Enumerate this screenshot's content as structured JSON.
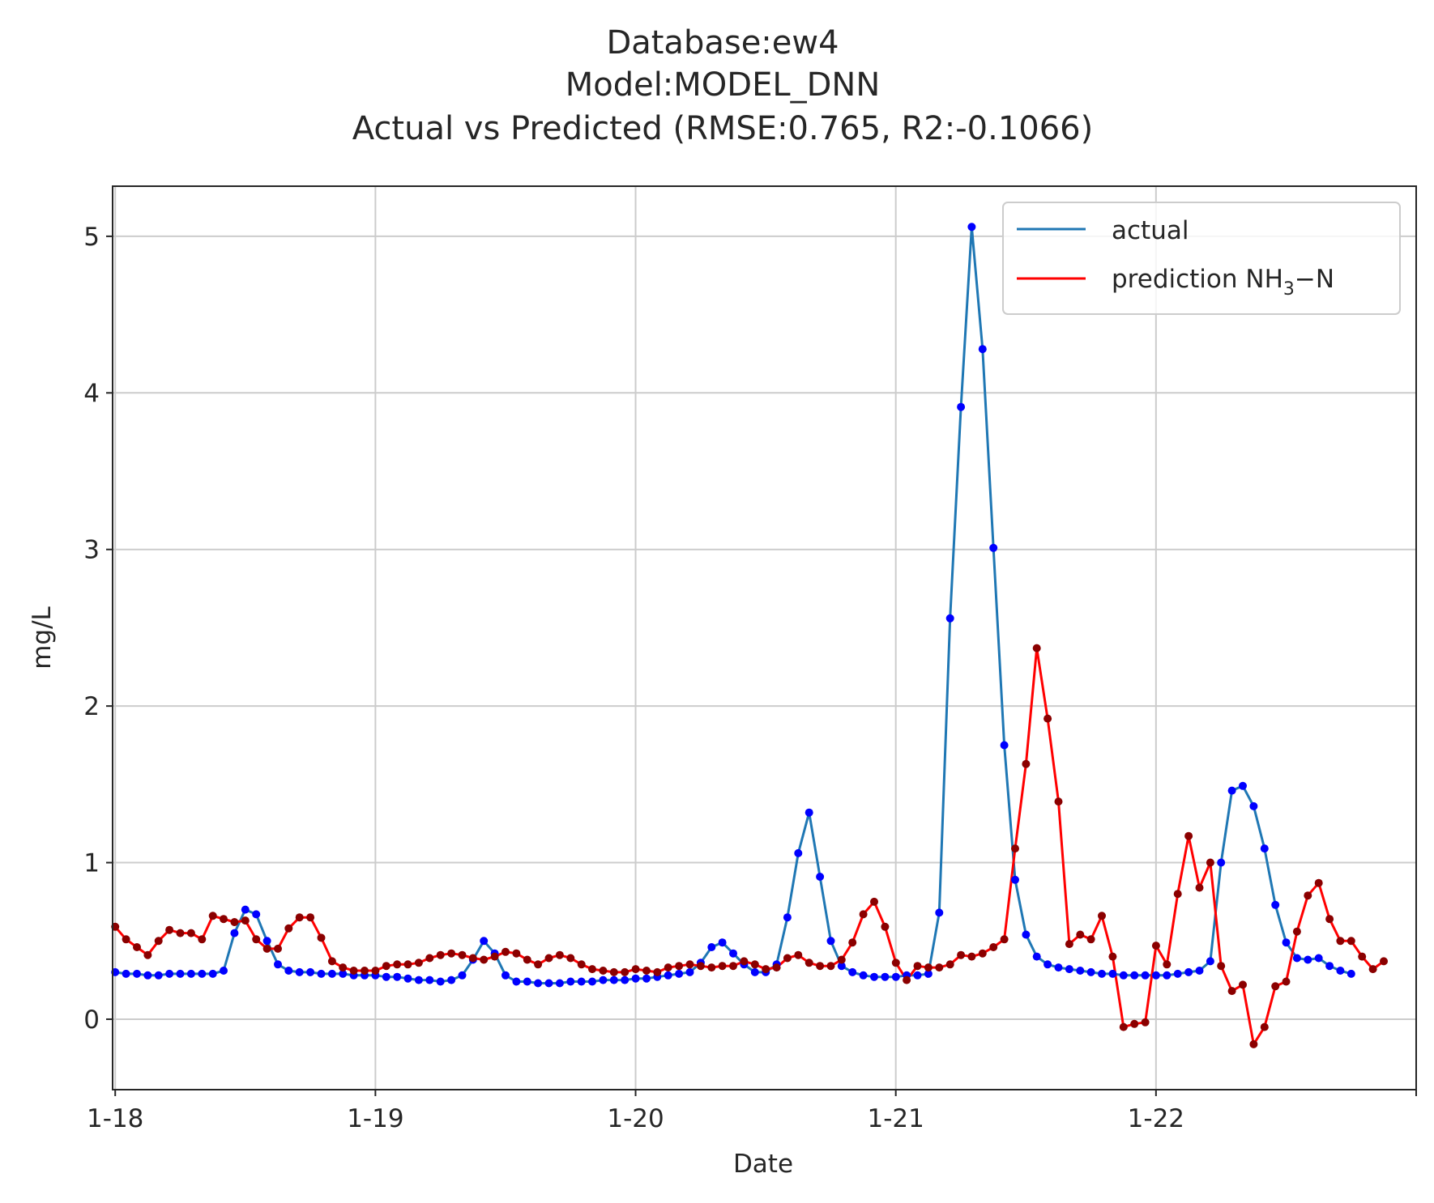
{
  "chart_data": {
    "type": "line",
    "title_lines": [
      "Database:ew4",
      "Model:MODEL_DNN",
      "Actual vs Predicted (RMSE:0.765, R2:-0.1066)"
    ],
    "xlabel": "Date",
    "ylabel": "mg/L",
    "x_ticks": [
      {
        "label": "1-18",
        "value": 0
      },
      {
        "label": "1-19",
        "value": 1
      },
      {
        "label": "1-20",
        "value": 2
      },
      {
        "label": "1-21",
        "value": 3
      },
      {
        "label": "1-22",
        "value": 4
      }
    ],
    "y_ticks": [
      0,
      1,
      2,
      3,
      4,
      5
    ],
    "xlim": [
      -0.01,
      5.0
    ],
    "ylim": [
      -0.45,
      5.32
    ],
    "grid": true,
    "legend_position": "top-right",
    "x_days_step": 0.04167,
    "series": [
      {
        "name": "actual",
        "color": "#1f77b4",
        "marker_color": "#0000ff",
        "values": [
          0.3,
          0.29,
          0.29,
          0.28,
          0.28,
          0.29,
          0.29,
          0.29,
          0.29,
          0.29,
          0.31,
          0.55,
          0.7,
          0.67,
          0.5,
          0.35,
          0.31,
          0.3,
          0.3,
          0.29,
          0.29,
          0.29,
          0.28,
          0.28,
          0.28,
          0.27,
          0.27,
          0.26,
          0.25,
          0.25,
          0.24,
          0.25,
          0.28,
          0.38,
          0.5,
          0.42,
          0.28,
          0.24,
          0.24,
          0.23,
          0.23,
          0.23,
          0.24,
          0.24,
          0.24,
          0.25,
          0.25,
          0.25,
          0.26,
          0.26,
          0.27,
          0.28,
          0.29,
          0.3,
          0.36,
          0.46,
          0.49,
          0.42,
          0.35,
          0.3,
          0.3,
          0.35,
          0.65,
          1.06,
          1.32,
          0.91,
          0.5,
          0.34,
          0.3,
          0.28,
          0.27,
          0.27,
          0.27,
          0.28,
          0.28,
          0.29,
          0.68,
          2.56,
          3.91,
          5.06,
          4.28,
          3.01,
          1.75,
          0.89,
          0.54,
          0.4,
          0.35,
          0.33,
          0.32,
          0.31,
          0.3,
          0.29,
          0.29,
          0.28,
          0.28,
          0.28,
          0.28,
          0.28,
          0.29,
          0.3,
          0.31,
          0.37,
          1.0,
          1.46,
          1.49,
          1.36,
          1.09,
          0.73,
          0.49,
          0.39,
          0.38,
          0.39,
          0.34,
          0.31,
          0.29
        ]
      },
      {
        "name": "prediction NH3-N",
        "name_main": "prediction NH",
        "name_sub": "3",
        "name_tail": "−N",
        "color": "#ff0000",
        "marker_color": "#8b0000",
        "values": [
          0.59,
          0.51,
          0.46,
          0.41,
          0.5,
          0.57,
          0.55,
          0.55,
          0.51,
          0.66,
          0.64,
          0.62,
          0.63,
          0.51,
          0.45,
          0.45,
          0.58,
          0.65,
          0.65,
          0.52,
          0.37,
          0.33,
          0.31,
          0.31,
          0.31,
          0.34,
          0.35,
          0.35,
          0.36,
          0.39,
          0.41,
          0.42,
          0.41,
          0.39,
          0.38,
          0.4,
          0.43,
          0.42,
          0.38,
          0.35,
          0.39,
          0.41,
          0.39,
          0.35,
          0.32,
          0.31,
          0.3,
          0.3,
          0.32,
          0.31,
          0.3,
          0.33,
          0.34,
          0.35,
          0.34,
          0.33,
          0.34,
          0.34,
          0.37,
          0.35,
          0.32,
          0.33,
          0.39,
          0.41,
          0.36,
          0.34,
          0.34,
          0.38,
          0.49,
          0.67,
          0.75,
          0.59,
          0.36,
          0.25,
          0.34,
          0.33,
          0.33,
          0.35,
          0.41,
          0.4,
          0.42,
          0.46,
          0.51,
          1.09,
          1.63,
          2.37,
          1.92,
          1.39,
          0.48,
          0.54,
          0.51,
          0.66,
          0.4,
          -0.05,
          -0.03,
          -0.02,
          0.47,
          0.35,
          0.8,
          1.17,
          0.84,
          1.0,
          0.34,
          0.18,
          0.22,
          -0.16,
          -0.05,
          0.21,
          0.24,
          0.56,
          0.79,
          0.87,
          0.64,
          0.5,
          0.5,
          0.4,
          0.32,
          0.37
        ]
      }
    ]
  }
}
